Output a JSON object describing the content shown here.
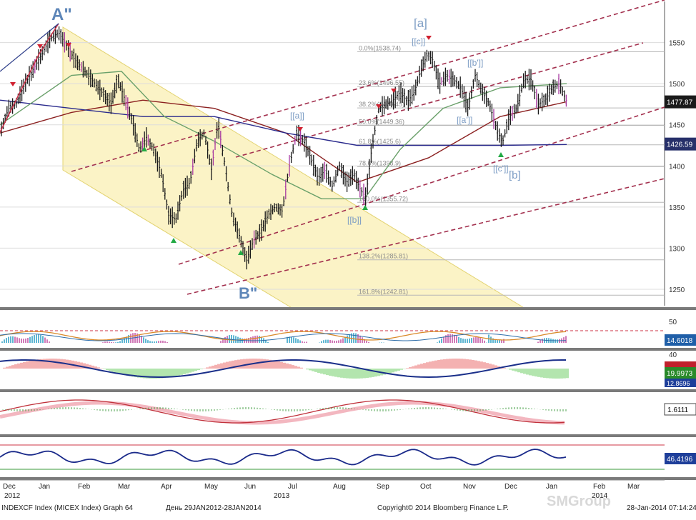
{
  "chart_data": {
    "type": "line",
    "instrument": "INDEXCF Index (MICEX Index) Graph 64",
    "period_label": "День 29JAN2012-28JAN2014",
    "copyright": "Copyright© 2014 Bloomberg Finance L.P.",
    "timestamp": "28-Jan-2014 07:14:24",
    "watermark": "SMGroup",
    "x_months": [
      "Dec",
      "Jan",
      "Feb",
      "Mar",
      "Apr",
      "May",
      "Jun",
      "Jul",
      "Aug",
      "Sep",
      "Oct",
      "Nov",
      "Dec",
      "Jan",
      "Feb",
      "Mar"
    ],
    "x_years": [
      "2012",
      "2013",
      "2014"
    ],
    "y_ticks": [
      1250,
      1300,
      1350,
      1400,
      1450,
      1500,
      1550
    ],
    "ylim": [
      1230,
      1600
    ],
    "price_path": [
      [
        0,
        1440
      ],
      [
        12,
        1470
      ],
      [
        22,
        1475
      ],
      [
        35,
        1500
      ],
      [
        48,
        1520
      ],
      [
        58,
        1535
      ],
      [
        70,
        1555
      ],
      [
        82,
        1562
      ],
      [
        92,
        1548
      ],
      [
        104,
        1530
      ],
      [
        116,
        1518
      ],
      [
        130,
        1503
      ],
      [
        142,
        1490
      ],
      [
        155,
        1475
      ],
      [
        165,
        1505
      ],
      [
        175,
        1480
      ],
      [
        185,
        1455
      ],
      [
        195,
        1420
      ],
      [
        205,
        1435
      ],
      [
        215,
        1420
      ],
      [
        226,
        1390
      ],
      [
        236,
        1340
      ],
      [
        246,
        1335
      ],
      [
        256,
        1370
      ],
      [
        266,
        1380
      ],
      [
        276,
        1430
      ],
      [
        286,
        1440
      ],
      [
        296,
        1395
      ],
      [
        305,
        1452
      ],
      [
        315,
        1400
      ],
      [
        325,
        1340
      ],
      [
        335,
        1315
      ],
      [
        345,
        1285
      ],
      [
        355,
        1310
      ],
      [
        365,
        1320
      ],
      [
        375,
        1340
      ],
      [
        385,
        1350
      ],
      [
        395,
        1345
      ],
      [
        405,
        1400
      ],
      [
        415,
        1440
      ],
      [
        425,
        1430
      ],
      [
        435,
        1410
      ],
      [
        445,
        1385
      ],
      [
        455,
        1395
      ],
      [
        465,
        1375
      ],
      [
        475,
        1400
      ],
      [
        485,
        1380
      ],
      [
        495,
        1390
      ],
      [
        505,
        1370
      ],
      [
        512,
        1362
      ],
      [
        520,
        1420
      ],
      [
        530,
        1470
      ],
      [
        540,
        1475
      ],
      [
        550,
        1480
      ],
      [
        560,
        1490
      ],
      [
        570,
        1478
      ],
      [
        580,
        1490
      ],
      [
        590,
        1520
      ],
      [
        598,
        1535
      ],
      [
        605,
        1530
      ],
      [
        615,
        1500
      ],
      [
        625,
        1510
      ],
      [
        635,
        1505
      ],
      [
        645,
        1495
      ],
      [
        655,
        1470
      ],
      [
        665,
        1510
      ],
      [
        675,
        1490
      ],
      [
        685,
        1475
      ],
      [
        695,
        1445
      ],
      [
        703,
        1428
      ],
      [
        713,
        1460
      ],
      [
        723,
        1470
      ],
      [
        733,
        1505
      ],
      [
        743,
        1505
      ],
      [
        753,
        1475
      ],
      [
        763,
        1480
      ],
      [
        773,
        1495
      ],
      [
        783,
        1500
      ],
      [
        793,
        1478
      ]
    ],
    "ma_lines": [
      {
        "name": "",
        "color": "#8b2020",
        "points": [
          [
            0,
            1440
          ],
          [
            100,
            1465
          ],
          [
            200,
            1480
          ],
          [
            300,
            1470
          ],
          [
            400,
            1440
          ],
          [
            500,
            1380
          ],
          [
            600,
            1410
          ],
          [
            700,
            1460
          ],
          [
            793,
            1478
          ]
        ]
      },
      {
        "name": "",
        "color": "#2a2a8c",
        "points": [
          [
            0,
            1480
          ],
          [
            100,
            1470
          ],
          [
            200,
            1460
          ],
          [
            300,
            1460
          ],
          [
            400,
            1440
          ],
          [
            500,
            1425
          ],
          [
            600,
            1425
          ],
          [
            700,
            1425
          ],
          [
            793,
            1426
          ]
        ]
      },
      {
        "name": "",
        "color": "#6aa06a",
        "points": [
          [
            0,
            1450
          ],
          [
            100,
            1510
          ],
          [
            170,
            1515
          ],
          [
            230,
            1460
          ],
          [
            300,
            1430
          ],
          [
            380,
            1390
          ],
          [
            450,
            1360
          ],
          [
            510,
            1360
          ],
          [
            560,
            1420
          ],
          [
            620,
            1470
          ],
          [
            700,
            1495
          ],
          [
            793,
            1500
          ]
        ]
      }
    ],
    "right_labels": [
      {
        "value": "1477.87",
        "kind": "price"
      },
      {
        "value": "1426.59",
        "kind": "ma"
      }
    ],
    "fib_levels": [
      {
        "label": "0.0%(1538.74)",
        "price": 1538.74
      },
      {
        "label": "23.6%(1496.55)",
        "price": 1496.55
      },
      {
        "label": "38.2%(1470.45)",
        "price": 1470.45
      },
      {
        "label": "50.0%(1449.36)",
        "price": 1449.36
      },
      {
        "label": "61.8%(1425.6)",
        "price": 1425.6
      },
      {
        "label": "78.6%(1398.9)",
        "price": 1398.9
      },
      {
        "label": "100.0%(1355.72)",
        "price": 1355.72
      },
      {
        "label": "138.2%(1285.81)",
        "price": 1285.81
      },
      {
        "label": "161.8%(1242.81)",
        "price": 1242.81
      }
    ],
    "wave_labels": [
      {
        "text": "A\"",
        "style": "major"
      },
      {
        "text": "B\"",
        "style": "major"
      },
      {
        "text": "[a]",
        "style": "minor"
      },
      {
        "text": "[[a]]",
        "style": "small"
      },
      {
        "text": "[[b]]",
        "style": "small"
      },
      {
        "text": "[[c]]",
        "style": "small"
      },
      {
        "text": "[[a']]",
        "style": "small"
      },
      {
        "text": "[[b']]",
        "style": "small"
      },
      {
        "text": "[[c']]",
        "style": "small"
      },
      {
        "text": "[b]",
        "style": "minor"
      }
    ],
    "panels": [
      {
        "name": "oscillator-1",
        "ticks": [
          50
        ],
        "last": "14.6018"
      },
      {
        "name": "oscillator-2",
        "ticks": [
          40
        ],
        "last": "19.9973",
        "last2": "12.8696"
      },
      {
        "name": "oscillator-3",
        "ticks": [],
        "last": "1.6111"
      },
      {
        "name": "oscillator-4",
        "ticks": [],
        "last": "46.4196"
      }
    ]
  }
}
